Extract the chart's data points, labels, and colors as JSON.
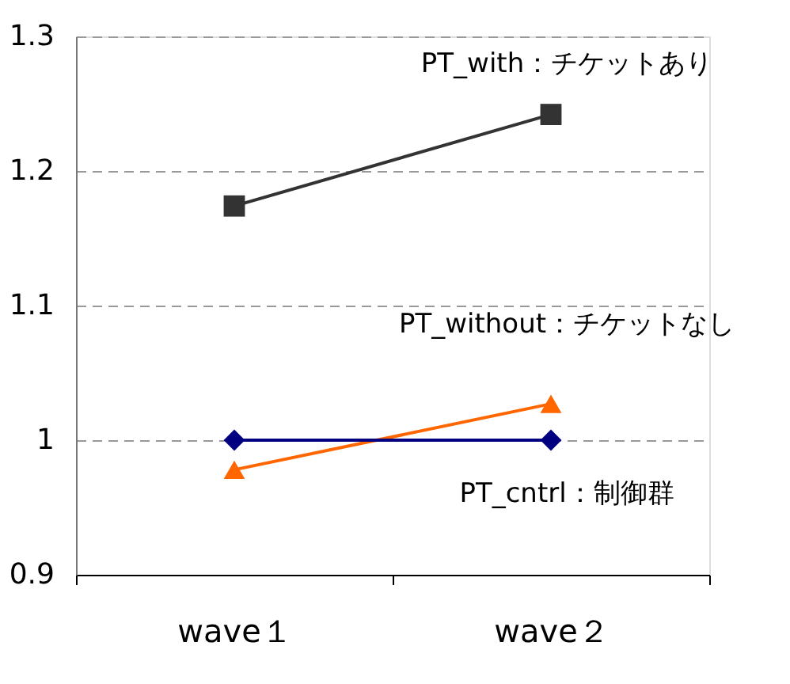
{
  "chart_data": {
    "type": "line",
    "categories": [
      "wave１",
      "wave２"
    ],
    "series": [
      {
        "name": "PT_with：チケットあり",
        "color": "#333333",
        "marker": "square",
        "values": [
          1.174,
          1.242
        ]
      },
      {
        "name": "PT_without：チケットなし",
        "color": "#ff6600",
        "marker": "triangle",
        "values": [
          0.978,
          1.027
        ]
      },
      {
        "name": "PT_cntrl：制御群",
        "color": "#000080",
        "marker": "diamond",
        "values": [
          1.0,
          1.0
        ]
      }
    ],
    "ylim": [
      0.9,
      1.3
    ],
    "yticks": [
      0.9,
      1,
      1.1,
      1.2,
      1.3
    ],
    "grid": "y",
    "line_style": "solid"
  }
}
